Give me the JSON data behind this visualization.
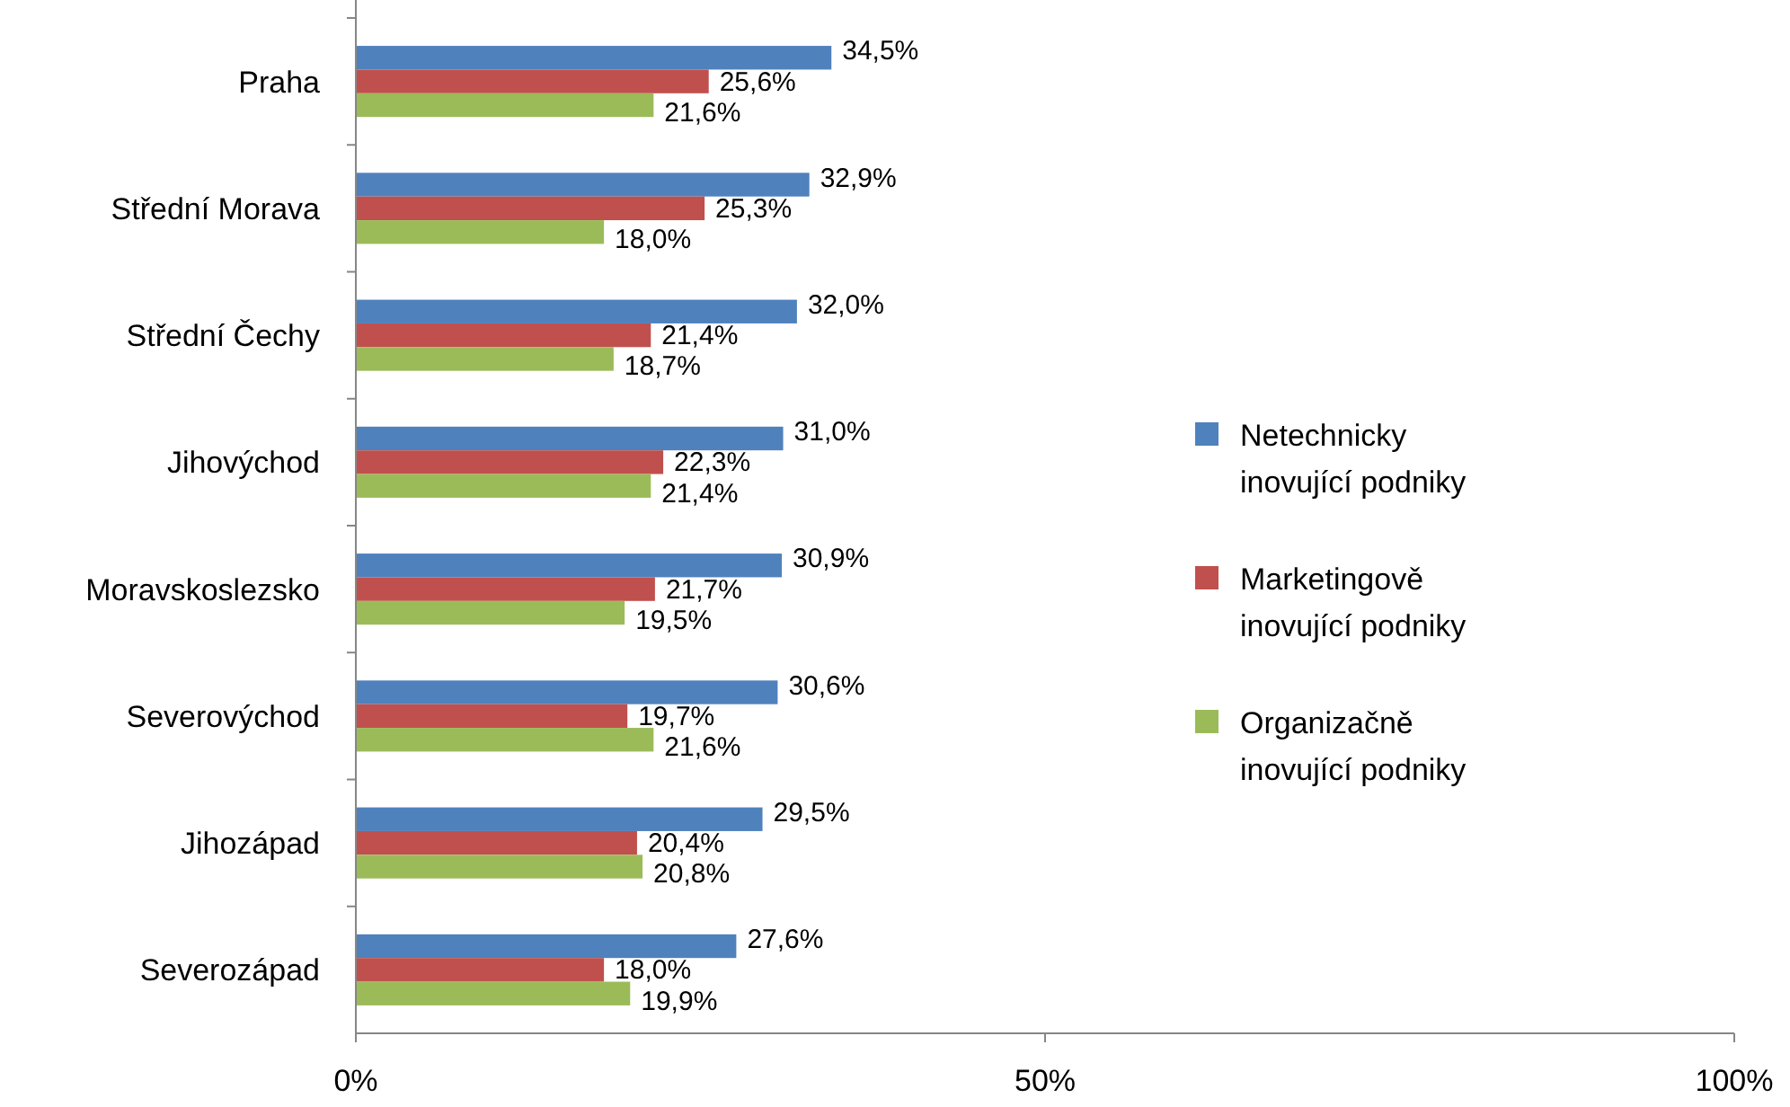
{
  "chart_data": {
    "type": "bar",
    "orientation": "horizontal",
    "categories": [
      "Praha",
      "Střední Morava",
      "Střední Čechy",
      "Jihovýchod",
      "Moravskoslezsko",
      "Severovýchod",
      "Jihozápad",
      "Severozápad"
    ],
    "series": [
      {
        "name": "Netechnicky inovující podniky",
        "color": "#4f81bd",
        "values": [
          34.5,
          32.9,
          32.0,
          31.0,
          30.9,
          30.6,
          29.5,
          27.6
        ],
        "value_labels": [
          "34,5%",
          "32,9%",
          "32,0%",
          "31,0%",
          "30,9%",
          "30,6%",
          "29,5%",
          "27,6%"
        ]
      },
      {
        "name": "Marketingově inovující podniky",
        "color": "#c0504d",
        "values": [
          25.6,
          25.3,
          21.4,
          22.3,
          21.7,
          19.7,
          20.4,
          18.0
        ],
        "value_labels": [
          "25,6%",
          "25,3%",
          "21,4%",
          "22,3%",
          "21,7%",
          "19,7%",
          "20,4%",
          "18,0%"
        ]
      },
      {
        "name": "Organizačně inovující podniky",
        "color": "#9bbb59",
        "values": [
          21.6,
          18.0,
          18.7,
          21.4,
          19.5,
          21.6,
          20.8,
          19.9
        ],
        "value_labels": [
          "21,6%",
          "18,0%",
          "18,7%",
          "21,4%",
          "19,5%",
          "21,6%",
          "20,8%",
          "19,9%"
        ]
      }
    ],
    "xlim": [
      0,
      100
    ],
    "xticks": [
      {
        "value": 0,
        "label": "0%"
      },
      {
        "value": 50,
        "label": "50%"
      },
      {
        "value": 100,
        "label": "100%"
      }
    ],
    "grid": false,
    "legend": "right"
  }
}
